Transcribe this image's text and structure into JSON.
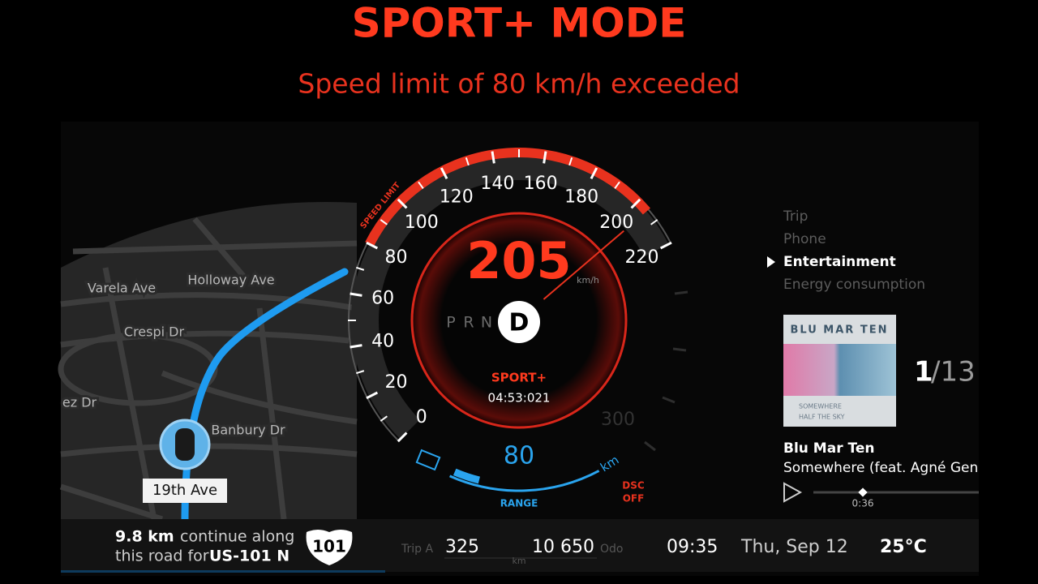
{
  "header": {
    "title": "SPORT+ MODE",
    "subtitle": "Speed limit of 80 km/h exceeded"
  },
  "gauge": {
    "speed_limit_label": "SPEED LIMIT",
    "ticks": [
      0,
      20,
      40,
      60,
      80,
      100,
      120,
      140,
      160,
      180,
      200,
      220
    ],
    "speed_limit": 80,
    "secondary_tick": 300,
    "speed": 205,
    "unit": "km/h",
    "gears": [
      "P",
      "R",
      "N",
      "D"
    ],
    "active_gear": 3,
    "mode": "SPORT+",
    "lap_time": "04:53:021",
    "range": 80,
    "range_unit": "km",
    "range_label": "RANGE",
    "dsc": [
      "DSC",
      "OFF"
    ]
  },
  "map": {
    "streets": [
      "Varela Ave",
      "Holloway Ave",
      "Crespi Dr",
      "ez Dr",
      "Banbury Dr"
    ],
    "current_street": "19th Ave"
  },
  "menu": {
    "items": [
      "Trip",
      "Phone",
      "Entertainment",
      "Energy consumption"
    ],
    "selected": 2
  },
  "media": {
    "album_title": "BLU MAR TEN",
    "album_lines": [
      "SOMEWHERE",
      "HALF THE SKY"
    ],
    "track": "1",
    "track_total": "/13",
    "artist": "Blu Mar Ten",
    "song": "Somewhere (feat. Agné Gen",
    "position": "0:36"
  },
  "footer": {
    "distance": "9.8 km",
    "instruction": [
      "continue along",
      "this road for"
    ],
    "road": "US-101 N",
    "shield": "101",
    "trip_label": "Trip A",
    "trip": "325",
    "trip_unit": "km",
    "odo": "10 650",
    "odo_label": "Odo",
    "clock": "09:35",
    "date": "Thu, Sep 12",
    "temperature": "25°C"
  }
}
